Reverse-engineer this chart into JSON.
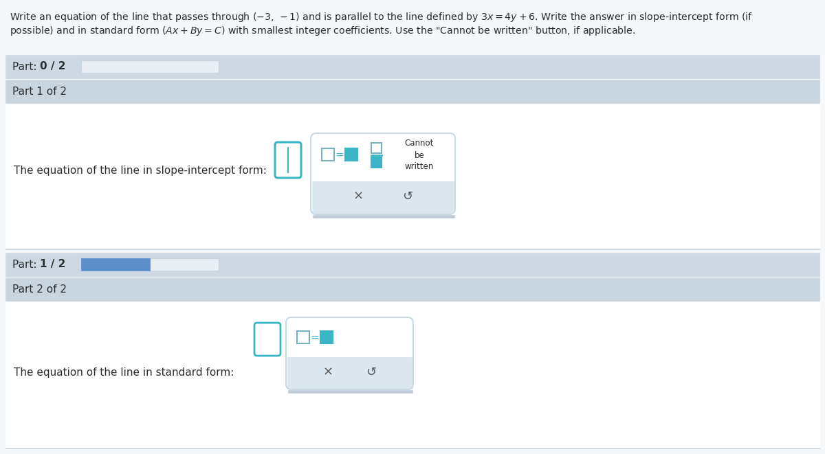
{
  "outer_bg": "#f5f8fb",
  "header_bg": "#cdd8e3",
  "section_bg": "#c8d4de",
  "content_bg": "#dde6ef",
  "white_bg": "#ffffff",
  "progress_bar_bg": "#e8eef4",
  "progress_fill_part2": "#5b8dc8",
  "teal_color": "#3ab5c6",
  "teal_fill": "#3ab5c6",
  "dark_text": "#2c2c2c",
  "medium_text": "#555555",
  "gray_text": "#888888",
  "popup_border": "#c8d8e4",
  "popup_bottom_bg": "#dce6ee",
  "part_0_label": "Part: 0 / 2",
  "part_1_header": "Part 1 of 2",
  "slope_intercept_label": "The equation of the line in slope-intercept form:",
  "part_1_label": "Part: 1 / 2",
  "part_2_header": "Part 2 of 2",
  "standard_form_label": "The equation of the line in standard form:",
  "cannot_be_written": "Cannot\nbe\nwritten",
  "x_symbol": "×",
  "undo_symbol": "↺"
}
